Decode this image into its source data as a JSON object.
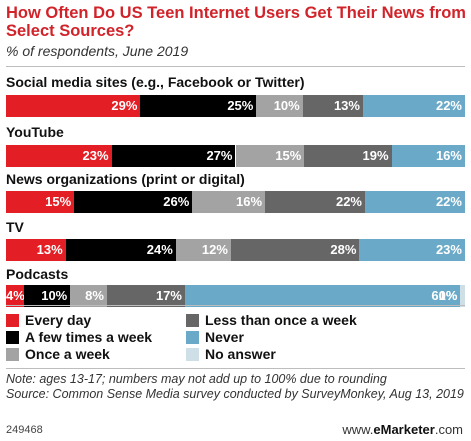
{
  "chart_data": {
    "type": "bar",
    "orientation": "horizontal-stacked-100",
    "title": "How Often Do US Teen Internet Users Get Their News from Select Sources?",
    "subtitle": "% of respondents, June 2019",
    "categories": [
      "Social media sites (e.g., Facebook or Twitter)",
      "YouTube",
      "News organizations (print or digital)",
      "TV",
      "Podcasts"
    ],
    "series": [
      {
        "name": "Every day",
        "color": "#e41e25",
        "text_color": "#ffffff",
        "values": [
          29,
          23,
          15,
          13,
          4
        ],
        "labels": [
          "29%",
          "23%",
          "15%",
          "13%",
          "4%"
        ]
      },
      {
        "name": "A few times a week",
        "color": "#000000",
        "text_color": "#ffffff",
        "values": [
          25,
          27,
          26,
          24,
          10
        ],
        "labels": [
          "25%",
          "27%",
          "26%",
          "24%",
          "10%"
        ]
      },
      {
        "name": "Once a week",
        "color": "#a3a3a3",
        "text_color": "#ffffff",
        "values": [
          10,
          15,
          16,
          12,
          8
        ],
        "labels": [
          "10%",
          "15%",
          "16%",
          "12%",
          "8%"
        ]
      },
      {
        "name": "Less than once a week",
        "color": "#666666",
        "text_color": "#ffffff",
        "values": [
          13,
          19,
          22,
          28,
          17
        ],
        "labels": [
          "13%",
          "19%",
          "22%",
          "28%",
          "17%"
        ]
      },
      {
        "name": "Never",
        "color": "#6aaac8",
        "text_color": "#ffffff",
        "values": [
          22,
          16,
          22,
          23,
          60
        ],
        "labels": [
          "22%",
          "16%",
          "22%",
          "23%",
          "60%"
        ]
      },
      {
        "name": "No answer",
        "color": "#cfdfe8",
        "text_color": "#ffffff",
        "values": [
          0,
          0,
          0,
          0,
          1
        ],
        "labels": [
          "",
          "",
          "",
          "",
          "1%"
        ]
      }
    ],
    "legend_position": "bottom",
    "grid": false
  },
  "note": "Note: ages 13-17; numbers may not add up to 100% due to rounding",
  "source": "Source: Common Sense Media survey conducted by SurveyMonkey, Aug 13, 2019",
  "chart_id": "249468",
  "brand": {
    "prefix": "www.",
    "name": "eMarketer",
    "suffix": ".com"
  }
}
